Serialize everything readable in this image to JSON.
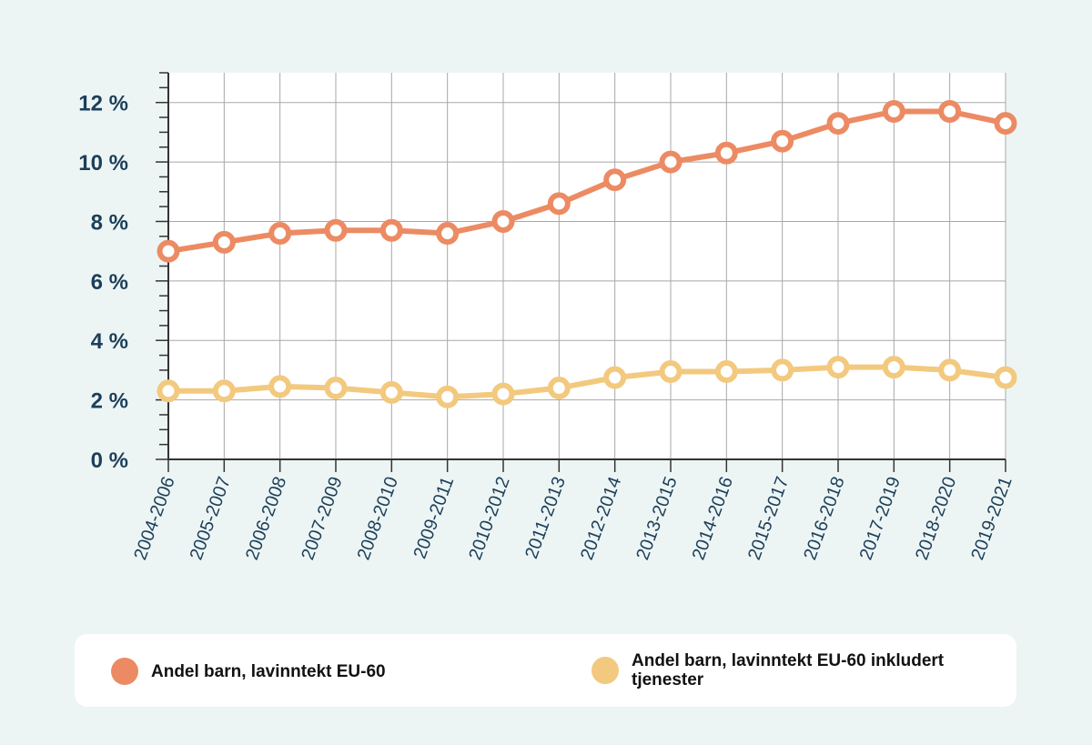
{
  "chart_data": {
    "type": "line",
    "categories": [
      "2004-2006",
      "2005-2007",
      "2006-2008",
      "2007-2009",
      "2008-2010",
      "2009-2011",
      "2010-2012",
      "2011-2013",
      "2012-2014",
      "2013-2015",
      "2014-2016",
      "2015-2017",
      "2016-2018",
      "2017-2019",
      "2018-2020",
      "2019-2021"
    ],
    "series": [
      {
        "name": "Andel barn, lavinntekt EU-60",
        "color": "#ec8b63",
        "values": [
          7.0,
          7.3,
          7.6,
          7.7,
          7.7,
          7.6,
          8.0,
          8.6,
          9.4,
          10.0,
          10.3,
          10.7,
          11.3,
          11.7,
          11.7,
          11.3
        ]
      },
      {
        "name": "Andel barn, lavinntekt EU-60 inkludert tjenester",
        "color": "#f2c97e",
        "values": [
          2.3,
          2.3,
          2.45,
          2.4,
          2.25,
          2.1,
          2.2,
          2.4,
          2.75,
          2.95,
          2.95,
          3.0,
          3.1,
          3.1,
          3.0,
          2.75
        ]
      }
    ],
    "yticks": [
      "0 %",
      "2 %",
      "4 %",
      "6 %",
      "8 %",
      "10 %",
      "12 %"
    ],
    "ytick_values": [
      0,
      2,
      4,
      6,
      8,
      10,
      12
    ],
    "ylim": [
      0,
      13
    ],
    "grid": true,
    "legend_position": "bottom",
    "title": "",
    "xlabel": "",
    "ylabel": ""
  },
  "legend": {
    "item1": "Andel barn, lavinntekt EU-60",
    "item2": "Andel barn, lavinntekt EU-60 inkludert tjenester"
  },
  "colors": {
    "background": "#edf5f4",
    "plot_background": "#ffffff",
    "grid": "#a8a8a8",
    "axis": "#333333",
    "tick_text": "#1c3f5a"
  }
}
